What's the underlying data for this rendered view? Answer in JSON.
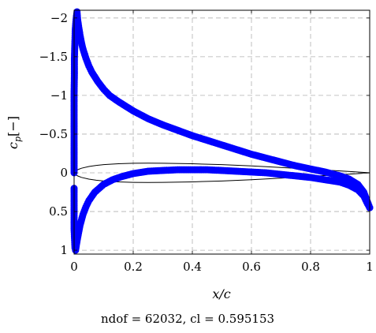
{
  "chart_data": {
    "type": "scatter",
    "title": "",
    "caption": "ndof = 62032, cl = 0.595153",
    "xlabel": "x/c",
    "ylabel": "c_p[−]",
    "xlim": [
      0,
      1
    ],
    "ylim": [
      1.05,
      -2.1
    ],
    "y_reversed": true,
    "grid": true,
    "x_ticks": [
      0,
      0.2,
      0.4,
      0.6,
      0.8,
      1
    ],
    "x_tick_labels": [
      "0",
      "0.2",
      "0.4",
      "0.6",
      "0.8",
      "1"
    ],
    "y_ticks": [
      -2,
      -1.5,
      -1,
      -0.5,
      0,
      0.5,
      1
    ],
    "y_tick_labels": [
      "−2",
      "−1.5",
      "−1",
      "−0.5",
      "0",
      "0.5",
      "1"
    ],
    "colors": {
      "points": "#0000ff",
      "airfoil": "#000000",
      "grid": "#b0b0b0"
    },
    "series": [
      {
        "name": "",
        "marker": "circle",
        "x": [
          0.0,
          0.0,
          0.0,
          0.0,
          0.0,
          0.0,
          0.001,
          0.001,
          0.002,
          0.003,
          0.004,
          0.006,
          0.008,
          0.01,
          0.012,
          0.015,
          0.02,
          0.025,
          0.03,
          0.04,
          0.05,
          0.06,
          0.08,
          0.1,
          0.12,
          0.15,
          0.2,
          0.25,
          0.3,
          0.35,
          0.4,
          0.45,
          0.5,
          0.55,
          0.6,
          0.65,
          0.7,
          0.75,
          0.8,
          0.85,
          0.9,
          0.93,
          0.96,
          0.98,
          0.99,
          1.0
        ],
        "y": [
          0.0,
          -0.17,
          -0.35,
          -0.55,
          -0.8,
          -1.02,
          -1.26,
          -1.47,
          -1.6,
          -1.72,
          -1.85,
          -1.95,
          -2.03,
          -2.08,
          -1.98,
          -1.9,
          -1.78,
          -1.68,
          -1.6,
          -1.48,
          -1.38,
          -1.3,
          -1.18,
          -1.08,
          -1.0,
          -0.92,
          -0.8,
          -0.7,
          -0.62,
          -0.55,
          -0.48,
          -0.42,
          -0.36,
          -0.3,
          -0.24,
          -0.19,
          -0.14,
          -0.09,
          -0.05,
          -0.01,
          0.04,
          0.08,
          0.15,
          0.25,
          0.35,
          0.45
        ]
      },
      {
        "name": "",
        "marker": "circle",
        "x": [
          0.0,
          0.0,
          0.0,
          0.0,
          0.001,
          0.002,
          0.003,
          0.005,
          0.007,
          0.01,
          0.015,
          0.02,
          0.03,
          0.04,
          0.05,
          0.07,
          0.1,
          0.13,
          0.16,
          0.2,
          0.25,
          0.3,
          0.35,
          0.4,
          0.45,
          0.5,
          0.55,
          0.6,
          0.65,
          0.7,
          0.75,
          0.8,
          0.85,
          0.9,
          0.93,
          0.96,
          0.98,
          0.99,
          1.0
        ],
        "y": [
          0.2,
          0.4,
          0.6,
          0.72,
          0.82,
          0.9,
          0.97,
          1.0,
          0.95,
          0.88,
          0.78,
          0.68,
          0.54,
          0.44,
          0.36,
          0.25,
          0.15,
          0.09,
          0.05,
          0.01,
          -0.02,
          -0.03,
          -0.04,
          -0.04,
          -0.04,
          -0.03,
          -0.02,
          -0.01,
          0.0,
          0.02,
          0.04,
          0.06,
          0.09,
          0.12,
          0.16,
          0.22,
          0.3,
          0.38,
          0.45
        ]
      }
    ],
    "annotation": "airfoil outline (unlabeled black curve)",
    "airfoil": {
      "x": [
        0.0,
        0.005,
        0.0125,
        0.025,
        0.05,
        0.075,
        0.1,
        0.15,
        0.2,
        0.25,
        0.3,
        0.4,
        0.5,
        0.6,
        0.7,
        0.8,
        0.9,
        0.95,
        1.0
      ],
      "upper": [
        0.0,
        0.0125,
        0.0204,
        0.0296,
        0.0408,
        0.0478,
        0.0528,
        0.0588,
        0.0616,
        0.0626,
        0.062,
        0.0584,
        0.0526,
        0.0444,
        0.0342,
        0.0231,
        0.0119,
        0.0062,
        0.0003
      ],
      "lower": [
        0.0,
        -0.0125,
        -0.0204,
        -0.0296,
        -0.0408,
        -0.0478,
        -0.0528,
        -0.0588,
        -0.0616,
        -0.0626,
        -0.062,
        -0.0584,
        -0.0526,
        -0.0444,
        -0.0342,
        -0.0231,
        -0.0119,
        -0.0062,
        -0.0003
      ],
      "cp_per_thickness": 2.0
    }
  }
}
